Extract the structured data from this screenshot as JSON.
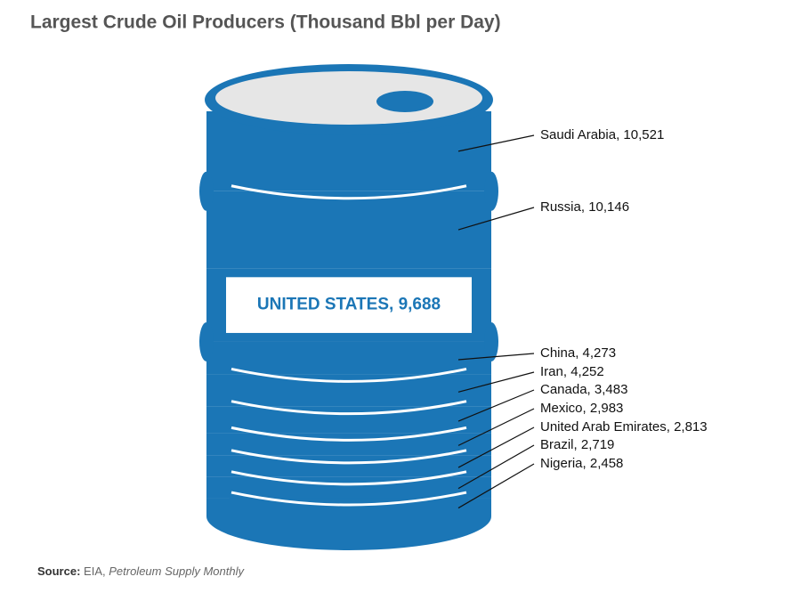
{
  "title": "Largest Crude Oil Producers (Thousand Bbl per Day)",
  "chart_data": {
    "type": "barrel",
    "categories": [
      "Saudi Arabia,",
      "Russia,",
      "UNITED STATES,",
      "China,",
      "Iran,",
      "Canada,",
      "Mexico,",
      "United Arab Emirates,",
      "Brazil,",
      "Nigeria,"
    ],
    "values": [
      10521,
      10146,
      9688,
      4273,
      4252,
      3483,
      2983,
      2813,
      2719,
      2458
    ],
    "value_labels": [
      "10,521",
      "10,146",
      "9,688",
      "4,273",
      "4,252",
      "3,483",
      "2,983",
      "2,813",
      "2,719",
      "2,458"
    ],
    "color": "#1b76b6"
  },
  "source": {
    "label": "Source:",
    "publisher": "EIA,",
    "publication": "Petroleum Supply Monthly"
  }
}
